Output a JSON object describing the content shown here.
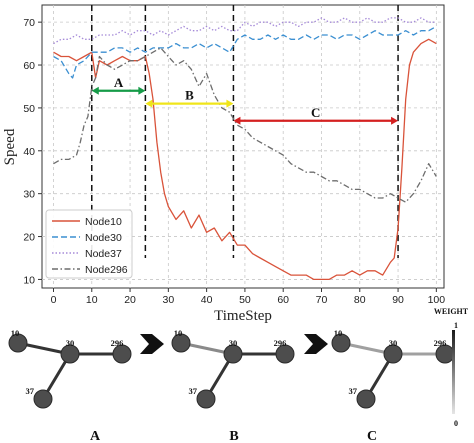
{
  "chart_data": {
    "type": "line",
    "title": "",
    "xlabel": "TimeStep",
    "ylabel": "Speed",
    "xlim": [
      -3,
      102
    ],
    "ylim": [
      8,
      74
    ],
    "xticks": [
      0,
      10,
      20,
      30,
      40,
      50,
      60,
      70,
      80,
      90,
      100
    ],
    "yticks": [
      10,
      20,
      30,
      40,
      50,
      60,
      70
    ],
    "grid": true,
    "legend_position": "bottom-left",
    "series": [
      {
        "name": "Node10",
        "color": "#d9533a",
        "dash": "solid",
        "x": [
          0,
          2,
          4,
          6,
          8,
          10,
          11,
          12,
          14,
          16,
          18,
          20,
          22,
          24,
          25,
          26,
          27,
          28,
          29,
          30,
          32,
          34,
          36,
          38,
          40,
          42,
          44,
          46,
          48,
          50,
          52,
          54,
          56,
          58,
          60,
          62,
          64,
          66,
          68,
          70,
          72,
          74,
          76,
          78,
          80,
          82,
          84,
          86,
          88,
          89,
          90,
          91,
          92,
          93,
          94,
          96,
          98,
          100
        ],
        "y": [
          63,
          62,
          62,
          61,
          62,
          63,
          57,
          61,
          60,
          61,
          62,
          61,
          61,
          62,
          58,
          52,
          42,
          35,
          30,
          27,
          24,
          26,
          22,
          25,
          21,
          22,
          19,
          21,
          18,
          18,
          16,
          15,
          14,
          13,
          12,
          11,
          11,
          11,
          10,
          10,
          10,
          11,
          11,
          12,
          11,
          12,
          12,
          11,
          14,
          15,
          22,
          36,
          52,
          60,
          63,
          65,
          66,
          65
        ]
      },
      {
        "name": "Node30",
        "color": "#3b8fd1",
        "dash": "dashed",
        "x": [
          0,
          2,
          4,
          5,
          6,
          8,
          10,
          12,
          14,
          16,
          18,
          20,
          22,
          24,
          26,
          28,
          30,
          32,
          34,
          36,
          38,
          40,
          42,
          44,
          46,
          48,
          50,
          52,
          54,
          56,
          58,
          60,
          62,
          64,
          66,
          68,
          70,
          72,
          74,
          76,
          78,
          80,
          82,
          84,
          86,
          88,
          90,
          92,
          94,
          96,
          98,
          100
        ],
        "y": [
          62,
          61,
          58,
          57,
          60,
          61,
          63,
          63,
          63,
          64,
          64,
          63,
          64,
          63,
          64,
          64,
          64,
          65,
          64,
          64,
          65,
          64,
          65,
          64,
          63,
          66,
          67,
          66,
          66,
          67,
          66,
          67,
          66,
          66,
          67,
          66,
          67,
          67,
          66,
          67,
          67,
          66,
          67,
          68,
          67,
          67,
          67,
          68,
          67,
          68,
          68,
          69
        ]
      },
      {
        "name": "Node37",
        "color": "#a58ad8",
        "dash": "dotted",
        "x": [
          0,
          2,
          4,
          6,
          8,
          10,
          12,
          14,
          16,
          18,
          20,
          22,
          24,
          26,
          28,
          30,
          32,
          34,
          36,
          38,
          40,
          42,
          44,
          46,
          48,
          50,
          52,
          54,
          56,
          58,
          60,
          62,
          64,
          66,
          68,
          70,
          72,
          74,
          76,
          78,
          80,
          82,
          84,
          86,
          88,
          90,
          92,
          94,
          96,
          98,
          100
        ],
        "y": [
          65,
          66,
          66,
          67,
          66,
          66,
          67,
          67,
          67,
          68,
          67,
          68,
          68,
          67,
          68,
          67,
          68,
          69,
          68,
          68,
          69,
          68,
          69,
          68,
          68,
          70,
          69,
          70,
          70,
          69,
          70,
          70,
          69,
          70,
          70,
          71,
          70,
          70,
          71,
          70,
          70,
          71,
          70,
          70,
          71,
          71,
          70,
          70,
          71,
          70,
          70
        ]
      },
      {
        "name": "Node296",
        "color": "#6d6d6d",
        "dash": "dashdot",
        "x": [
          0,
          2,
          4,
          6,
          7,
          8,
          9,
          10,
          11,
          12,
          14,
          16,
          18,
          20,
          22,
          24,
          26,
          28,
          30,
          32,
          34,
          36,
          38,
          40,
          42,
          44,
          46,
          48,
          50,
          52,
          54,
          56,
          58,
          60,
          62,
          64,
          66,
          68,
          70,
          72,
          74,
          76,
          78,
          80,
          82,
          84,
          86,
          88,
          90,
          92,
          94,
          96,
          98,
          100
        ],
        "y": [
          37,
          38,
          38,
          39,
          42,
          46,
          48,
          55,
          57,
          62,
          60,
          59,
          60,
          61,
          61,
          62,
          63,
          64,
          62,
          60,
          61,
          59,
          55,
          58,
          53,
          50,
          49,
          46,
          45,
          43,
          42,
          41,
          40,
          39,
          37,
          36,
          35,
          35,
          34,
          33,
          33,
          32,
          31,
          31,
          30,
          29,
          29,
          30,
          29,
          28,
          30,
          33,
          37,
          34
        ]
      }
    ],
    "phase_markers": [
      10,
      24,
      47,
      90
    ],
    "phases": [
      {
        "label": "A",
        "from": 10,
        "to": 24,
        "y": 54,
        "color": "#169b48"
      },
      {
        "label": "B",
        "from": 24,
        "to": 47,
        "y": 51,
        "color": "#f0e51a"
      },
      {
        "label": "C",
        "from": 47,
        "to": 90,
        "y": 47,
        "color": "#d42020"
      }
    ]
  },
  "graphs": [
    {
      "caption": "A",
      "edges": {
        "e10": 0.85,
        "e37": 0.85,
        "e296": 0.85
      }
    },
    {
      "caption": "B",
      "edges": {
        "e10": 0.45,
        "e37": 0.85,
        "e296": 0.85
      }
    },
    {
      "caption": "C",
      "edges": {
        "e10": 0.35,
        "e37": 0.85,
        "e296": 0.35
      }
    }
  ],
  "node_labels": {
    "n10": "10",
    "n30": "30",
    "n37": "37",
    "n296": "296"
  },
  "weight_scale": {
    "title": "WEIGHT",
    "max_label": "1",
    "min_label": "0"
  }
}
